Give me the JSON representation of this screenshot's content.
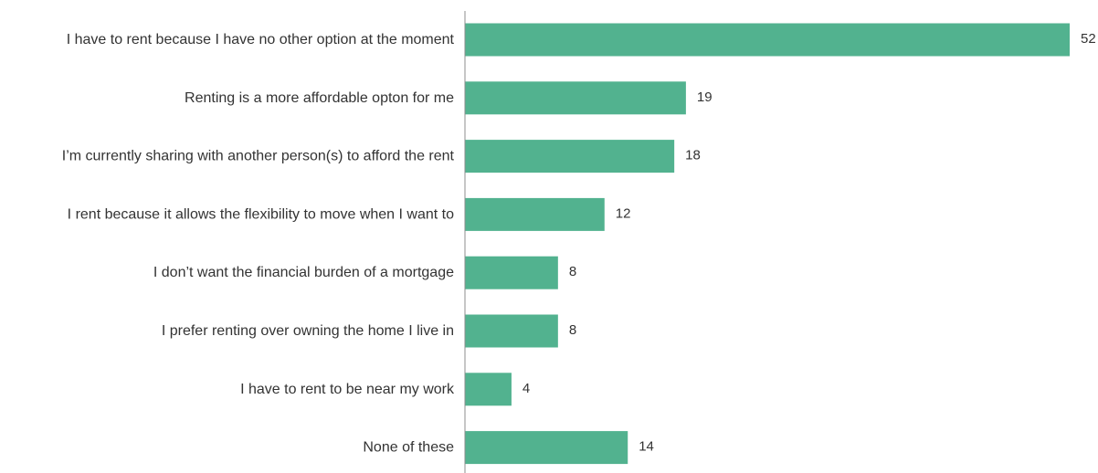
{
  "chart_data": {
    "type": "bar",
    "orientation": "horizontal",
    "categories": [
      "I have to rent because I have no other option at the moment",
      "Renting is a more affordable opton for me",
      "I’m currently sharing with another person(s) to afford the rent",
      "I rent because it allows the flexibility to move when I want to",
      "I don’t want the financial burden of a mortgage",
      "I prefer renting over owning the home I live in",
      "I have to rent to be near my work",
      "None of these"
    ],
    "values": [
      52,
      19,
      18,
      12,
      8,
      8,
      4,
      14
    ],
    "xlim": [
      0,
      52
    ],
    "grid": false,
    "legend": "none",
    "bar_color": "#52b28f",
    "axis_color": "#8c8c8c",
    "text_color": "#333333"
  }
}
